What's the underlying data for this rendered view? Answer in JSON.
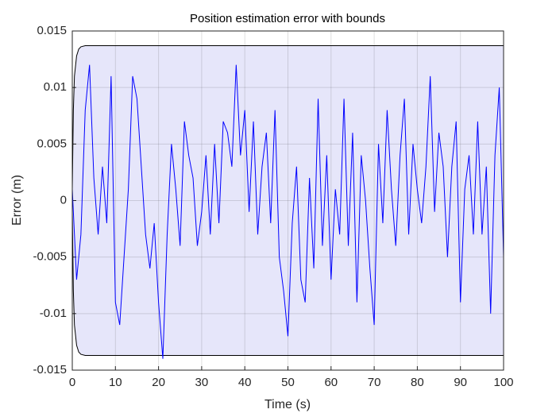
{
  "chart_data": {
    "type": "line",
    "title": "Position estimation error with bounds",
    "xlabel": "Time (s)",
    "ylabel": "Error (m)",
    "x": [
      0,
      1,
      2,
      3,
      4,
      5,
      6,
      7,
      8,
      9,
      10,
      11,
      12,
      13,
      14,
      15,
      16,
      17,
      18,
      19,
      20,
      21,
      22,
      23,
      24,
      25,
      26,
      27,
      28,
      29,
      30,
      31,
      32,
      33,
      34,
      35,
      36,
      37,
      38,
      39,
      40,
      41,
      42,
      43,
      44,
      45,
      46,
      47,
      48,
      49,
      50,
      51,
      52,
      53,
      54,
      55,
      56,
      57,
      58,
      59,
      60,
      61,
      62,
      63,
      64,
      65,
      66,
      67,
      68,
      69,
      70,
      71,
      72,
      73,
      74,
      75,
      76,
      77,
      78,
      79,
      80,
      81,
      82,
      83,
      84,
      85,
      86,
      87,
      88,
      89,
      90,
      91,
      92,
      93,
      94,
      95,
      96,
      97,
      98,
      99,
      100
    ],
    "series": [
      {
        "color": "#0000ff",
        "values": [
          0.001,
          -0.007,
          -0.003,
          0.008,
          0.012,
          0.002,
          -0.003,
          0.003,
          -0.002,
          0.011,
          -0.009,
          -0.011,
          -0.005,
          0.001,
          0.011,
          0.009,
          0.003,
          -0.003,
          -0.006,
          -0.002,
          -0.009,
          -0.014,
          -0.003,
          0.005,
          0.001,
          -0.004,
          0.007,
          0.004,
          0.002,
          -0.004,
          -0.001,
          0.004,
          -0.003,
          0.005,
          -0.002,
          0.007,
          0.006,
          0.003,
          0.012,
          0.004,
          0.008,
          -0.001,
          0.007,
          -0.003,
          0.003,
          0.006,
          -0.002,
          0.008,
          -0.005,
          -0.008,
          -0.012,
          -0.002,
          0.003,
          -0.007,
          -0.009,
          0.002,
          -0.006,
          0.009,
          -0.004,
          0.004,
          -0.007,
          0.001,
          -0.003,
          0.009,
          -0.004,
          0.006,
          -0.009,
          0.004,
          0,
          -0.006,
          -0.011,
          0.005,
          -0.002,
          0.008,
          0.001,
          -0.004,
          0.004,
          0.009,
          -0.003,
          0.005,
          0.001,
          -0.002,
          0.003,
          0.011,
          -0.001,
          0.006,
          0.003,
          -0.005,
          0.003,
          0.007,
          -0.009,
          0.001,
          0.004,
          -0.003,
          0.007,
          -0.003,
          0.003,
          -0.01,
          0.004,
          0.01,
          -0.005
        ]
      }
    ],
    "bounds": {
      "x": [
        0,
        0.25,
        0.5,
        1,
        1.5,
        2,
        3,
        100
      ],
      "upper": [
        0.001,
        0.008,
        0.011,
        0.0128,
        0.0134,
        0.0136,
        0.0137,
        0.0137
      ],
      "lower": [
        -0.001,
        -0.008,
        -0.011,
        -0.0128,
        -0.0134,
        -0.0136,
        -0.0137,
        -0.0137
      ],
      "fill": "#e6e6fa",
      "edge": "#000000"
    },
    "xlim": [
      0,
      100
    ],
    "xticks": [
      0,
      10,
      20,
      30,
      40,
      50,
      60,
      70,
      80,
      90,
      100
    ],
    "ylim": [
      -0.015,
      0.015
    ],
    "yticks": [
      -0.015,
      -0.01,
      -0.005,
      0,
      0.005,
      0.01,
      0.015
    ],
    "grid": true
  }
}
